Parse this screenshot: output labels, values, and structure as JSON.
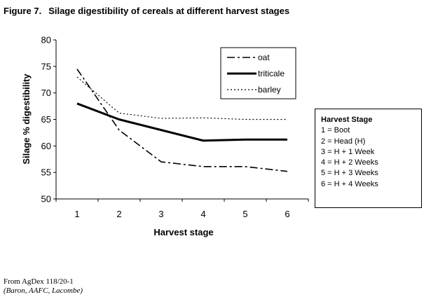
{
  "figure": {
    "number": "Figure 7.",
    "title": "Silage digestibility of cereals at different harvest stages"
  },
  "chart_data": {
    "type": "line",
    "title": "Silage digestibility of cereals at different harvest stages",
    "xlabel": "Harvest stage",
    "ylabel": "Silage % digestibility",
    "x": [
      1,
      2,
      3,
      4,
      5,
      6
    ],
    "xlim": [
      0.5,
      6.5
    ],
    "ylim": [
      50,
      80
    ],
    "yticks": [
      50,
      55,
      60,
      65,
      70,
      75,
      80
    ],
    "grid": false,
    "legend_position": "top-right",
    "series": [
      {
        "name": "oat",
        "style": "dash-dot",
        "color": "#000000",
        "values": [
          74.5,
          63.0,
          57.0,
          56.1,
          56.1,
          55.2
        ]
      },
      {
        "name": "triticale",
        "style": "solid-thick",
        "color": "#000000",
        "values": [
          68.0,
          65.0,
          63.0,
          61.0,
          61.2,
          61.2
        ]
      },
      {
        "name": "barley",
        "style": "dotted",
        "color": "#000000",
        "values": [
          73.0,
          66.2,
          65.2,
          65.3,
          65.0,
          65.0
        ]
      }
    ]
  },
  "harvest_stage": {
    "title": "Harvest Stage",
    "items": [
      "1 = Boot",
      "2 = Head (H)",
      "3 = H + 1 Week",
      "4 = H + 2 Weeks",
      "5 = H + 3 Weeks",
      "6 = H + 4 Weeks"
    ]
  },
  "source": {
    "line1": "From AgDex 118/20-1",
    "line2": "(Baron, AAFC, Lacombe)"
  }
}
